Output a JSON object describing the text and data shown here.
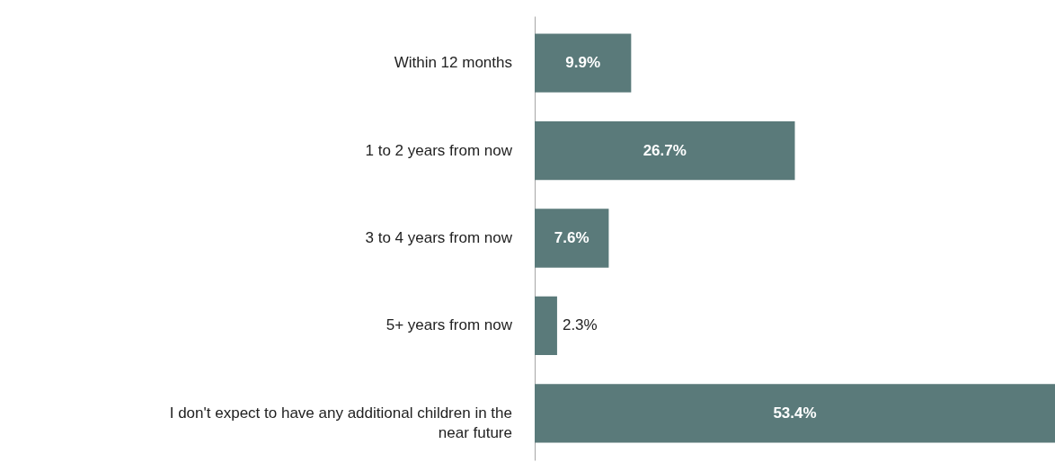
{
  "chart_data": {
    "type": "bar",
    "orientation": "horizontal",
    "categories": [
      "Within 12 months",
      "1 to 2 years from now",
      "3 to 4 years from now",
      "5+ years from now",
      "I don't expect to have any additional children in the near future"
    ],
    "values": [
      9.9,
      26.7,
      7.6,
      2.3,
      53.4
    ],
    "value_labels": [
      "9.9%",
      "26.7%",
      "7.6%",
      "2.3%",
      "53.4%"
    ],
    "color": "#5a7a7a",
    "grid": false
  }
}
